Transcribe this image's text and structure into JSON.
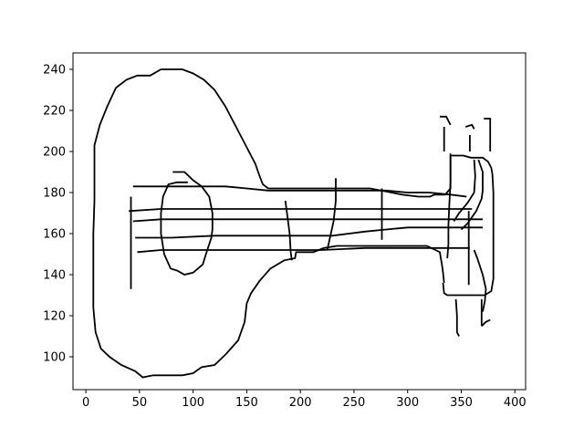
{
  "chart_data": {
    "type": "line",
    "title": "",
    "xlabel": "",
    "ylabel": "",
    "xlim": [
      -12,
      410
    ],
    "ylim": [
      84,
      248
    ],
    "xticks": [
      0,
      50,
      100,
      150,
      200,
      250,
      300,
      350,
      400
    ],
    "yticks": [
      100,
      120,
      140,
      160,
      180,
      200,
      220,
      240
    ],
    "grid": false,
    "legend": "none",
    "line_color": "#000000",
    "series": [
      {
        "points": [
          [
            70,
            240
          ],
          [
            60,
            237
          ],
          [
            48,
            237
          ],
          [
            38,
            235
          ],
          [
            28,
            231
          ],
          [
            20,
            222
          ],
          [
            13,
            213
          ],
          [
            8,
            203
          ],
          [
            8,
            176
          ],
          [
            7,
            160
          ],
          [
            7,
            124
          ],
          [
            9,
            112
          ],
          [
            14,
            104
          ],
          [
            22,
            100
          ],
          [
            33,
            96
          ],
          [
            46,
            93
          ],
          [
            53,
            90
          ],
          [
            63,
            91
          ],
          [
            90,
            91
          ],
          [
            100,
            92
          ],
          [
            108,
            95
          ],
          [
            120,
            96
          ],
          [
            130,
            101
          ],
          [
            142,
            108
          ],
          [
            148,
            117
          ],
          [
            150,
            126
          ],
          [
            154,
            131
          ],
          [
            162,
            137
          ],
          [
            172,
            143
          ],
          [
            185,
            147
          ],
          [
            195,
            148
          ],
          [
            196,
            151
          ],
          [
            204,
            151
          ],
          [
            212,
            151
          ],
          [
            222,
            153
          ],
          [
            234,
            154
          ],
          [
            246,
            154
          ],
          [
            262,
            154
          ],
          [
            275,
            154
          ],
          [
            290,
            154
          ],
          [
            305,
            154
          ],
          [
            318,
            154
          ],
          [
            330,
            151
          ],
          [
            331,
            148
          ],
          [
            332,
            145
          ],
          [
            333,
            141
          ],
          [
            334,
            136
          ]
        ]
      },
      {
        "points": [
          [
            70,
            240
          ],
          [
            82,
            240
          ],
          [
            90,
            240
          ],
          [
            100,
            238
          ],
          [
            110,
            235
          ],
          [
            120,
            230
          ],
          [
            130,
            222
          ],
          [
            140,
            212
          ],
          [
            150,
            202
          ],
          [
            158,
            194
          ],
          [
            162,
            188
          ],
          [
            165,
            184
          ],
          [
            170,
            182
          ],
          [
            200,
            182
          ],
          [
            215,
            182
          ],
          [
            230,
            182
          ],
          [
            265,
            182
          ],
          [
            275,
            181
          ],
          [
            285,
            180
          ],
          [
            295,
            179
          ],
          [
            310,
            178
          ],
          [
            321,
            178
          ],
          [
            325,
            179
          ],
          [
            335,
            179
          ],
          [
            340,
            182
          ],
          [
            340,
            186
          ],
          [
            340,
            198
          ],
          [
            345,
            198
          ],
          [
            352,
            198
          ],
          [
            359,
            197
          ],
          [
            370,
            197
          ],
          [
            375,
            195
          ],
          [
            378,
            192
          ],
          [
            379,
            189
          ],
          [
            380,
            180
          ],
          [
            380,
            150
          ],
          [
            380,
            143
          ],
          [
            380,
            138
          ],
          [
            378,
            132
          ],
          [
            372,
            130
          ],
          [
            365,
            130
          ],
          [
            340,
            130
          ],
          [
            337,
            130
          ],
          [
            334,
            131
          ],
          [
            333,
            136
          ]
        ]
      },
      {
        "points": [
          [
            44,
            183
          ],
          [
            70,
            183
          ],
          [
            90,
            183
          ],
          [
            110,
            183
          ],
          [
            130,
            183
          ],
          [
            150,
            182
          ],
          [
            170,
            181
          ],
          [
            200,
            181
          ],
          [
            240,
            181
          ],
          [
            280,
            181
          ],
          [
            300,
            180
          ],
          [
            320,
            180
          ],
          [
            340,
            179
          ],
          [
            355,
            178
          ]
        ]
      },
      {
        "points": [
          [
            40,
            171
          ],
          [
            70,
            172
          ],
          [
            100,
            172
          ],
          [
            130,
            172
          ],
          [
            160,
            172
          ],
          [
            200,
            172
          ],
          [
            250,
            172
          ],
          [
            300,
            172
          ],
          [
            350,
            172
          ],
          [
            360,
            172
          ]
        ]
      },
      {
        "points": [
          [
            44,
            166
          ],
          [
            70,
            167
          ],
          [
            100,
            167
          ],
          [
            140,
            167
          ],
          [
            180,
            167
          ],
          [
            220,
            167
          ],
          [
            260,
            167
          ],
          [
            300,
            167
          ],
          [
            340,
            167
          ],
          [
            370,
            167
          ]
        ]
      },
      {
        "points": [
          [
            46,
            158
          ],
          [
            80,
            158
          ],
          [
            120,
            159
          ],
          [
            160,
            159
          ],
          [
            200,
            159
          ],
          [
            230,
            159
          ],
          [
            260,
            161
          ],
          [
            280,
            162
          ],
          [
            300,
            163
          ],
          [
            330,
            163
          ],
          [
            360,
            163
          ],
          [
            370,
            163
          ]
        ]
      },
      {
        "points": [
          [
            48,
            151
          ],
          [
            70,
            152
          ],
          [
            100,
            152
          ],
          [
            140,
            152
          ],
          [
            180,
            152
          ],
          [
            220,
            152
          ],
          [
            260,
            153
          ],
          [
            300,
            153
          ],
          [
            340,
            153
          ],
          [
            358,
            153
          ]
        ]
      },
      {
        "points": [
          [
            42,
            178
          ],
          [
            42,
            160
          ],
          [
            42,
            140
          ],
          [
            42,
            133
          ]
        ]
      },
      {
        "points": [
          [
            81,
            190
          ],
          [
            92,
            190
          ],
          [
            100,
            186
          ],
          [
            108,
            183
          ],
          [
            115,
            178
          ],
          [
            118,
            170
          ],
          [
            118,
            162
          ],
          [
            117,
            158
          ],
          [
            112,
            150
          ],
          [
            109,
            145
          ],
          [
            100,
            141
          ],
          [
            92,
            140
          ],
          [
            85,
            142
          ],
          [
            79,
            143
          ],
          [
            73,
            150
          ],
          [
            70,
            160
          ],
          [
            70,
            170
          ],
          [
            72,
            178
          ],
          [
            77,
            184
          ],
          [
            85,
            185
          ],
          [
            95,
            185
          ]
        ]
      },
      {
        "points": [
          [
            186,
            176
          ],
          [
            188,
            168
          ],
          [
            190,
            160
          ],
          [
            191,
            151
          ],
          [
            192,
            147
          ]
        ]
      },
      {
        "points": [
          [
            233,
            187
          ],
          [
            233,
            176
          ],
          [
            231,
            166
          ],
          [
            228,
            159
          ],
          [
            225,
            152
          ]
        ]
      },
      {
        "points": [
          [
            276,
            182
          ],
          [
            276,
            170
          ],
          [
            276,
            157
          ]
        ]
      },
      {
        "points": [
          [
            340,
            199
          ],
          [
            340,
            185
          ],
          [
            339,
            175
          ],
          [
            338,
            164
          ],
          [
            338,
            155
          ],
          [
            337,
            148
          ]
        ]
      },
      {
        "points": [
          [
            357,
            171
          ],
          [
            357,
            162
          ],
          [
            357,
            150
          ],
          [
            357,
            142
          ],
          [
            357,
            135
          ]
        ]
      },
      {
        "points": [
          [
            366,
            196
          ],
          [
            370,
            190
          ],
          [
            370,
            181
          ],
          [
            369,
            177
          ],
          [
            364,
            171
          ],
          [
            356,
            165
          ],
          [
            350,
            162
          ]
        ]
      },
      {
        "points": [
          [
            362,
            196
          ],
          [
            363,
            188
          ],
          [
            362,
            180
          ],
          [
            356,
            175
          ],
          [
            348,
            170
          ],
          [
            343,
            166
          ]
        ]
      },
      {
        "points": [
          [
            362,
            152
          ],
          [
            365,
            148
          ],
          [
            370,
            140
          ],
          [
            373,
            133
          ],
          [
            372,
            127
          ],
          [
            370,
            122
          ]
        ]
      },
      {
        "points": [
          [
            330,
            217
          ],
          [
            336,
            217
          ],
          [
            340,
            213
          ]
        ]
      },
      {
        "points": [
          [
            334,
            212
          ],
          [
            334,
            200
          ]
        ]
      },
      {
        "points": [
          [
            354,
            212
          ],
          [
            360,
            213
          ],
          [
            362,
            211
          ]
        ]
      },
      {
        "points": [
          [
            358,
            208
          ],
          [
            358,
            200
          ]
        ]
      },
      {
        "points": [
          [
            371,
            216
          ],
          [
            377,
            216
          ],
          [
            377,
            200
          ]
        ]
      },
      {
        "points": [
          [
            345,
            128
          ],
          [
            346,
            120
          ],
          [
            346,
            112
          ],
          [
            348,
            110
          ]
        ]
      },
      {
        "points": [
          [
            369,
            128
          ],
          [
            369,
            118
          ],
          [
            369,
            115
          ]
        ]
      },
      {
        "points": [
          [
            369,
            115
          ],
          [
            373,
            117
          ],
          [
            377,
            118
          ]
        ]
      }
    ]
  }
}
